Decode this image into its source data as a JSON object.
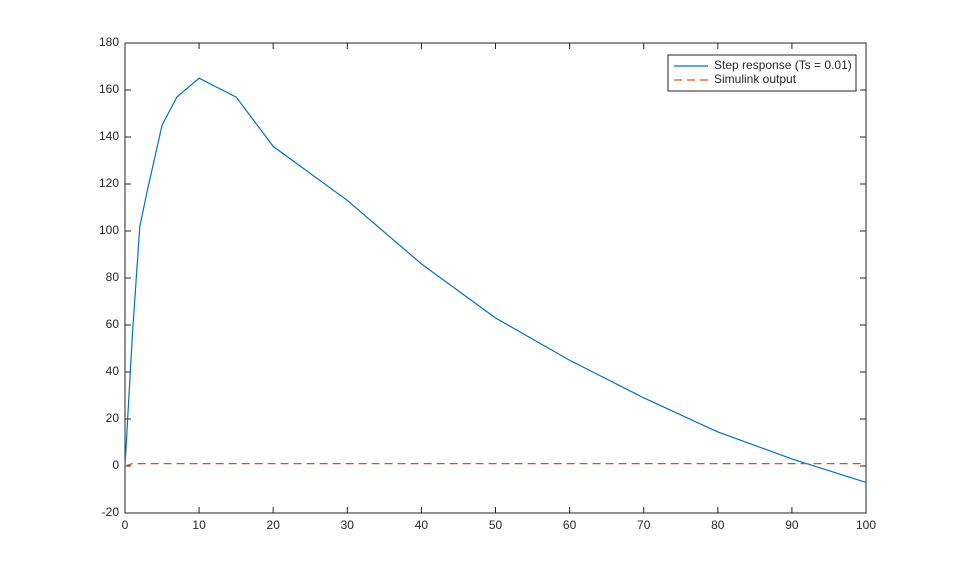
{
  "chart_data": {
    "type": "line",
    "series": [
      {
        "name": "Step response (Ts = 0.01)",
        "color": "#0072bd",
        "linestyle": "solid",
        "x": [
          0,
          1,
          2,
          3,
          5,
          7,
          10,
          15,
          20,
          30,
          40,
          50,
          60,
          70,
          80,
          90,
          100
        ],
        "values": [
          0,
          56,
          102,
          117,
          145,
          157,
          165,
          157,
          136,
          113,
          86,
          63,
          45,
          29,
          14.5,
          3,
          -7
        ]
      },
      {
        "name": "Simulink output",
        "color": "#d95319",
        "linestyle": "dashed",
        "x": [
          0,
          1,
          100
        ],
        "values": [
          0,
          1,
          1
        ]
      }
    ],
    "xlim": [
      0,
      100
    ],
    "xticks": [
      0,
      10,
      20,
      30,
      40,
      50,
      60,
      70,
      80,
      90,
      100
    ],
    "ylim": [
      -20,
      180
    ],
    "yticks": [
      -20,
      0,
      20,
      40,
      60,
      80,
      100,
      120,
      140,
      160,
      180
    ],
    "grid": false,
    "legend": "northeast"
  }
}
